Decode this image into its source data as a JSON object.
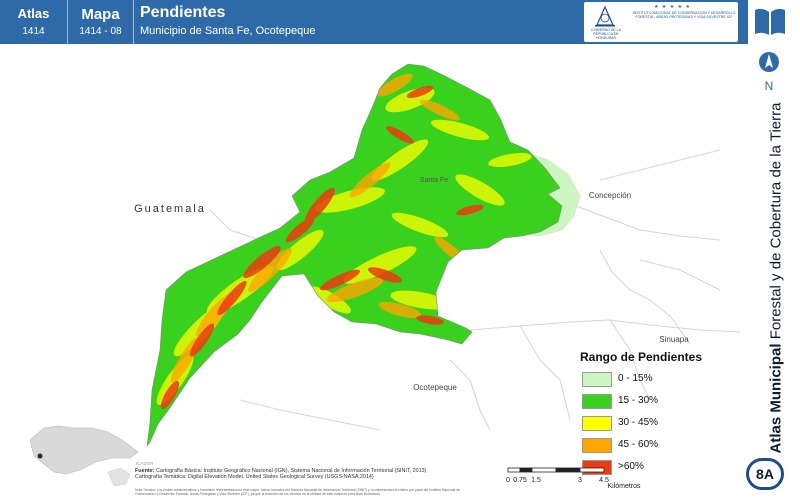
{
  "header": {
    "atlas_label": "Atlas",
    "atlas_number": "1414",
    "map_label": "Mapa",
    "map_code": "1414 - 08",
    "title": "Pendientes",
    "subtitle": "Municipio de Santa Fe, Ocotepeque",
    "gov_text": "GOBIERNO DE LA REPÚBLICA DE HONDURAS",
    "stars": "★ ★ ★ ★ ★",
    "institute_text": "INSTITUTO NACIONAL DE CONSERVACIÓN Y DESARROLLO FORESTAL, ÁREAS PROTEGIDAS Y VIDA SILVESTRE ICF"
  },
  "sidebar": {
    "north_label": "N",
    "series_bold": "Atlas Municipal",
    "series_rest": " Forestal y de Cobertura de la Tierra",
    "badge": "8A"
  },
  "map": {
    "places": {
      "guatemala": "Guatemala",
      "santa_fe": "Santa Fe",
      "concepcion": "Concepción",
      "sinuapa": "Sinuapa",
      "ocotepeque": "Ocotepeque"
    }
  },
  "legend": {
    "title": "Rango de Pendientes",
    "items": [
      {
        "label": "0 - 15%",
        "color": "#ccf5c2"
      },
      {
        "label": "15 - 30%",
        "color": "#3ad01e"
      },
      {
        "label": "30 - 45%",
        "color": "#ffff00"
      },
      {
        "label": "45 - 60%",
        "color": "#ffa500"
      },
      {
        "label": ">60%",
        "color": "#ee3a10"
      }
    ]
  },
  "source": {
    "label": "Fuente:",
    "line1": " Cartografía Básica: Instituto Geográfico Nacional (IGN), Sistema Nacional de Información Territorial (SINIT, 2013)",
    "line2": "Cartografía Temática: Digital Elevation Model, United States Geological Survey (USGS-NASA,2014)",
    "note": "Nota Técnica: Los límites administrativos y forestales representados en este mapa, fueron tomados del Sistema Nacional de Información Territorial (SINIT) y no representan el criterio por parte del Instituto Nacional de Conservación y Desarrollo Forestal, Áreas Protegidas y Vida Silvestre (ICF), ya que la inclusión de los mismos en la utilidad de este mapa es para fines ilustrativos.",
    "credit": "ICADOR"
  },
  "scale": {
    "ticks": [
      "0",
      "0.75",
      "1.5",
      "3",
      "4.5"
    ],
    "unit": "Kilómetros"
  }
}
